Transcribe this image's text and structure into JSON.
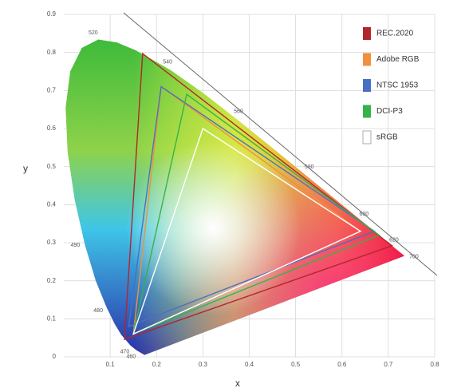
{
  "chart_data": {
    "type": "chromaticity",
    "x_label": "x",
    "y_label": "y",
    "xlim": [
      0,
      0.8
    ],
    "ylim": [
      0,
      0.9
    ],
    "xticks": [
      0.1,
      0.2,
      0.3,
      0.4,
      0.5,
      0.6,
      0.7,
      0.8
    ],
    "yticks": [
      0,
      0.1,
      0.2,
      0.3,
      0.4,
      0.5,
      0.6,
      0.7,
      0.8,
      0.9
    ],
    "grid": true,
    "legend": "upper right",
    "locus": {
      "x": [
        0.1741,
        0.1566,
        0.144,
        0.1241,
        0.1096,
        0.0913,
        0.0687,
        0.0454,
        0.0235,
        0.0082,
        0.0039,
        0.0139,
        0.0389,
        0.0743,
        0.1142,
        0.1547,
        0.2296,
        0.3016,
        0.3731,
        0.4441,
        0.5125,
        0.5752,
        0.627,
        0.6658,
        0.6915,
        0.719,
        0.7347
      ],
      "y": [
        0.005,
        0.0177,
        0.0297,
        0.0578,
        0.0868,
        0.1327,
        0.2007,
        0.295,
        0.4127,
        0.5384,
        0.6548,
        0.7502,
        0.812,
        0.8338,
        0.8262,
        0.8059,
        0.7543,
        0.6923,
        0.6245,
        0.5547,
        0.4866,
        0.4242,
        0.3725,
        0.334,
        0.3083,
        0.2809,
        0.2653
      ],
      "labels": [
        null,
        "460",
        "470",
        null,
        null,
        "480",
        null,
        "490",
        null,
        null,
        null,
        null,
        null,
        "520",
        null,
        null,
        "540",
        null,
        "560",
        null,
        "580",
        null,
        "600",
        null,
        "620",
        null,
        "700"
      ]
    },
    "series": [
      {
        "name": "REC.2020",
        "color": "#b3262b",
        "x": [
          0.708,
          0.17,
          0.131
        ],
        "y": [
          0.292,
          0.797,
          0.046
        ]
      },
      {
        "name": "Adobe RGB",
        "color": "#f0903e",
        "x": [
          0.64,
          0.21,
          0.15
        ],
        "y": [
          0.33,
          0.71,
          0.06
        ]
      },
      {
        "name": "NTSC 1953",
        "color": "#4a70c2",
        "x": [
          0.67,
          0.21,
          0.14
        ],
        "y": [
          0.33,
          0.71,
          0.08
        ]
      },
      {
        "name": "DCI-P3",
        "color": "#35b34a",
        "x": [
          0.68,
          0.265,
          0.15
        ],
        "y": [
          0.32,
          0.69,
          0.06
        ]
      },
      {
        "name": "sRGB",
        "color": "#ffffff",
        "x": [
          0.64,
          0.3,
          0.15
        ],
        "y": [
          0.33,
          0.6,
          0.06
        ]
      }
    ]
  }
}
